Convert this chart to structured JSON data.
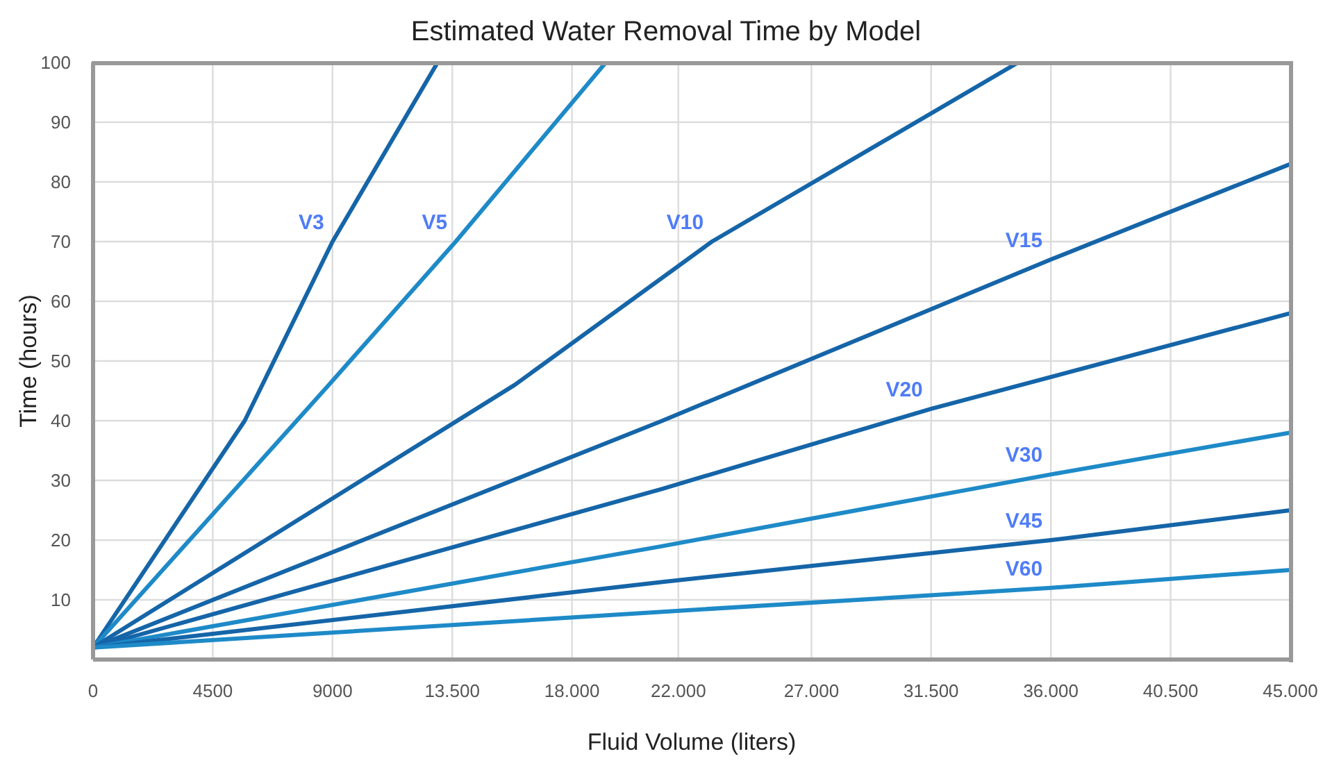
{
  "chart_data": {
    "type": "line",
    "title": "Estimated Water Removal Time by Model",
    "xlabel": "Fluid Volume (liters)",
    "ylabel": "Time (hours)",
    "xlim": [
      0,
      45000
    ],
    "ylim": [
      0,
      100
    ],
    "xticks": [
      0,
      4500,
      9000,
      {
        "value": 13500,
        "label": "13.500"
      },
      {
        "value": 18000,
        "label": "18.000"
      },
      {
        "value": 22000,
        "label": "22.000"
      },
      {
        "value": 27000,
        "label": "27.000"
      },
      {
        "value": 31500,
        "label": "31.500"
      },
      {
        "value": 36000,
        "label": "36.000"
      },
      {
        "value": 40500,
        "label": "40.500"
      },
      {
        "value": 45000,
        "label": "45.000"
      }
    ],
    "yticks": [
      10,
      20,
      30,
      40,
      50,
      60,
      70,
      80,
      90,
      100
    ],
    "grid": true,
    "marker": "none",
    "line_style": "solid",
    "series": [
      {
        "name": "V3",
        "color": "#1565a8",
        "x": [
          0,
          5700,
          9000,
          12950
        ],
        "values": [
          2,
          40,
          70,
          100
        ]
      },
      {
        "name": "V5",
        "color": "#1e8ac8",
        "x": [
          0,
          8860,
          13630,
          19270
        ],
        "values": [
          2,
          46,
          70,
          100
        ]
      },
      {
        "name": "V10",
        "color": "#1565a8",
        "x": [
          0,
          15850,
          23260,
          34770
        ],
        "values": [
          2,
          46,
          70,
          100
        ]
      },
      {
        "name": "V15",
        "color": "#1565a8",
        "x": [
          0,
          21400,
          36000,
          45000
        ],
        "values": [
          2,
          40,
          67,
          83
        ]
      },
      {
        "name": "V20",
        "color": "#1565a8",
        "x": [
          0,
          21400,
          31500,
          45000
        ],
        "values": [
          2,
          28.6,
          42,
          58
        ]
      },
      {
        "name": "V30",
        "color": "#1e8ac8",
        "x": [
          0,
          21400,
          36000,
          45000
        ],
        "values": [
          2,
          19,
          31,
          38
        ]
      },
      {
        "name": "V45",
        "color": "#1565a8",
        "x": [
          0,
          21400,
          36000,
          45000
        ],
        "values": [
          2,
          13,
          20,
          25
        ]
      },
      {
        "name": "V60",
        "color": "#1e8ac8",
        "x": [
          0,
          21400,
          36000,
          45000
        ],
        "values": [
          2,
          8,
          12,
          15
        ]
      }
    ]
  }
}
